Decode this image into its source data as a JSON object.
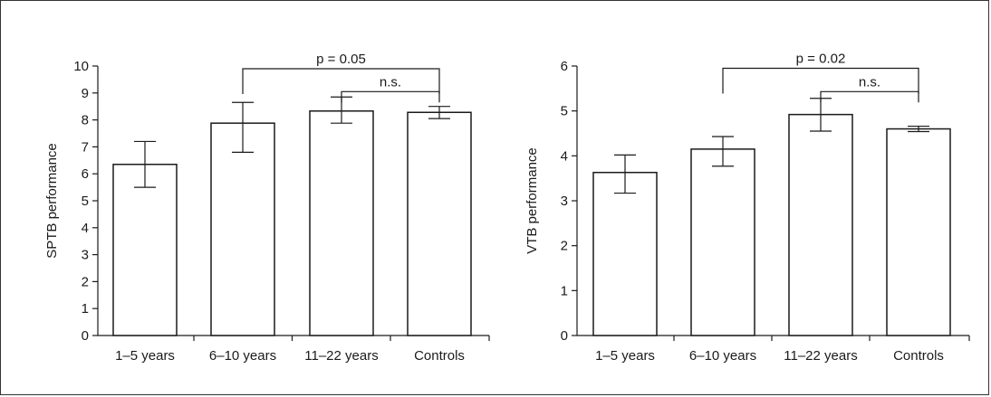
{
  "chart_data": [
    {
      "type": "bar",
      "categories": [
        "1–5 years",
        "6–10 years",
        "11–22 years",
        "Controls"
      ],
      "values": [
        6.35,
        7.88,
        8.33,
        8.28
      ],
      "error_low": [
        5.5,
        6.8,
        7.88,
        8.05
      ],
      "error_high": [
        7.2,
        8.65,
        8.85,
        8.5
      ],
      "ylabel": "SPTB performance",
      "ylim": [
        0,
        10
      ],
      "yticks": [
        0,
        1,
        2,
        3,
        4,
        5,
        6,
        7,
        8,
        9,
        10
      ],
      "annotations": [
        {
          "label": "p = 0.05",
          "from": 1,
          "to": 3,
          "level": 9.9
        },
        {
          "label": "n.s.",
          "from": 2,
          "to": 3,
          "level": 9.05
        }
      ],
      "bar_color": "#ffffff",
      "edge_color": "#1a1a1a"
    },
    {
      "type": "bar",
      "categories": [
        "1–5 years",
        "6–10 years",
        "11–22 years",
        "Controls"
      ],
      "values": [
        3.63,
        4.15,
        4.92,
        4.6
      ],
      "error_low": [
        3.17,
        3.77,
        4.55,
        4.54
      ],
      "error_high": [
        4.02,
        4.43,
        5.28,
        4.66
      ],
      "ylabel": "VTB performance",
      "ylim": [
        0,
        6
      ],
      "yticks": [
        0,
        1,
        2,
        3,
        4,
        5,
        6
      ],
      "annotations": [
        {
          "label": "p = 0.02",
          "from": 1,
          "to": 3,
          "level": 5.95
        },
        {
          "label": "n.s.",
          "from": 2,
          "to": 3,
          "level": 5.43
        }
      ],
      "bar_color": "#ffffff",
      "edge_color": "#1a1a1a"
    }
  ]
}
